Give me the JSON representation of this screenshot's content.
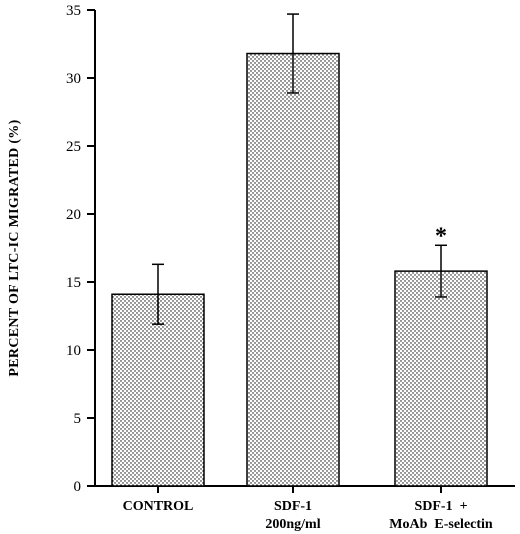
{
  "chart_data": {
    "type": "bar",
    "title": "",
    "xlabel": "",
    "ylabel": "PERCENT OF LTC-IC MIGRATED (%)",
    "ylim": [
      0,
      35
    ],
    "yticks": [
      0,
      5,
      10,
      15,
      20,
      25,
      30,
      35
    ],
    "grid": false,
    "categories": [
      [
        "CONTROL"
      ],
      [
        "SDF-1",
        "200ng/ml"
      ],
      [
        "SDF-1  +",
        "MoAb  E-selectin"
      ]
    ],
    "values": [
      14.1,
      31.8,
      15.8
    ],
    "errors": [
      2.2,
      2.9,
      1.9
    ],
    "annotations": [
      {
        "category_index": 2,
        "text": "*"
      }
    ],
    "bar_fill": "stippled",
    "colors": {
      "bar_fill": "#ffffff",
      "stipple": "#000000",
      "axis": "#000000"
    }
  }
}
